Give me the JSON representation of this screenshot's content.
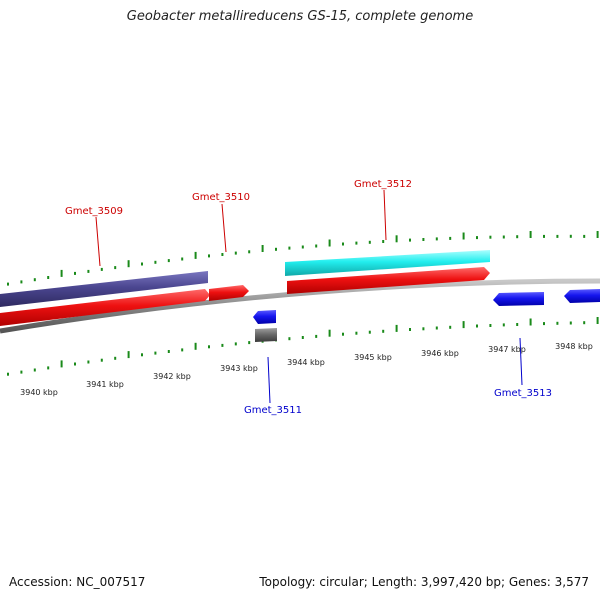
{
  "title": "Geobacter metallireducens GS-15, complete genome",
  "footer": {
    "accession": "Accession: NC_007517",
    "summary": "Topology: circular; Length: 3,997,420 bp; Genes: 3,577"
  },
  "scale_labels": [
    "3940 kbp",
    "3941 kbp",
    "3942 kbp",
    "3943 kbp",
    "3944 kbp",
    "3945 kbp",
    "3946 kbp",
    "3947 kbp",
    "3948 kbp"
  ],
  "gene_labels": {
    "gmet_3509": "Gmet_3509",
    "gmet_3510": "Gmet_3510",
    "gmet_3511": "Gmet_3511",
    "gmet_3512": "Gmet_3512",
    "gmet_3513": "Gmet_3513"
  },
  "colors": {
    "backbone": "#888888",
    "forward_cds": "#ee1111",
    "reverse_cds": "#1515ee",
    "navy_feature": "#4b4690",
    "cyan_feature": "#22eeee",
    "gray_feature": "#6a6a6a",
    "tick": "#1a8a1a",
    "forward_label": "#cc0000",
    "reverse_label": "#0000cc"
  }
}
